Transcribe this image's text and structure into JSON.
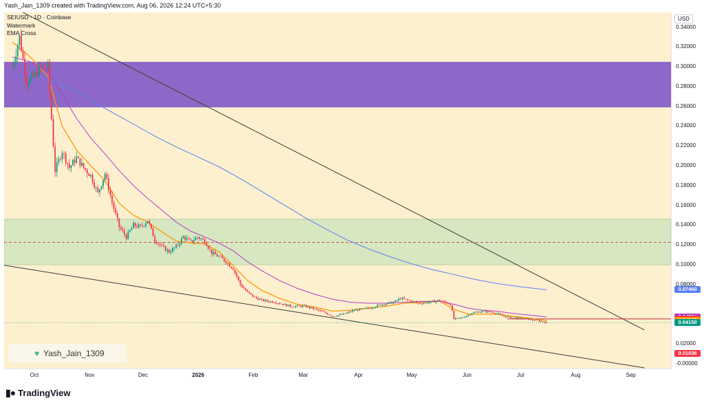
{
  "header": {
    "text": "Yash_Jain_1309 created with TradingView.com, Aug 06, 2026 12:24 UTC+5:30"
  },
  "legend": {
    "symbol_line": "SEIUSD · 1D · Coinbase",
    "watermark_label": "Watermark",
    "ema_label": "EMA Cross"
  },
  "watermark": {
    "text": "Yash_Jain_1309"
  },
  "footer": {
    "brand": "TradingView"
  },
  "price_axis": {
    "currency": "USD",
    "ticks": [
      "0.34000",
      "0.32000",
      "0.30000",
      "0.28000",
      "0.26000",
      "0.24000",
      "0.22000",
      "0.20000",
      "0.18000",
      "0.16000",
      "0.14000",
      "0.12000",
      "0.10000",
      "0.08000",
      "0.02000",
      "-0.00000"
    ],
    "tick_values": [
      0.34,
      0.32,
      0.3,
      0.28,
      0.26,
      0.24,
      0.22,
      0.2,
      0.18,
      0.16,
      0.14,
      0.12,
      0.1,
      0.08,
      0.02,
      0.0
    ],
    "badges": [
      {
        "label": "0.07460",
        "value": 0.0746,
        "color": "#5b7ff5"
      },
      {
        "label": "0.04724",
        "value": 0.04724,
        "color": "#b13ac6"
      },
      {
        "label": "0.04518",
        "value": 0.04518,
        "color": "#f23645"
      },
      {
        "label": "0.04343",
        "value": 0.04343,
        "color": "#ff9800"
      },
      {
        "label": "0.04150",
        "value": 0.0415,
        "color": "#089981"
      },
      {
        "label": "0.01036",
        "value": 0.01036,
        "color": "#f23645"
      }
    ]
  },
  "time_axis": {
    "labels": [
      {
        "label": "Oct",
        "day": 0,
        "bold": false
      },
      {
        "label": "Nov",
        "day": 31,
        "bold": false
      },
      {
        "label": "Dec",
        "day": 61,
        "bold": false
      },
      {
        "label": "2026",
        "day": 92,
        "bold": true
      },
      {
        "label": "Feb",
        "day": 123,
        "bold": false
      },
      {
        "label": "Mar",
        "day": 151,
        "bold": false
      },
      {
        "label": "Apr",
        "day": 182,
        "bold": false
      },
      {
        "label": "May",
        "day": 212,
        "bold": false
      },
      {
        "label": "Jun",
        "day": 243,
        "bold": false
      },
      {
        "label": "Jul",
        "day": 273,
        "bold": false
      },
      {
        "label": "Aug",
        "day": 304,
        "bold": false
      },
      {
        "label": "Sep",
        "day": 335,
        "bold": false
      }
    ]
  },
  "colors": {
    "background": "#fdf0cf",
    "up": "#089981",
    "down": "#f23645",
    "ema_short": "#ff9800",
    "ema_mid": "#b13ac6",
    "ema_long": "#5b7ff5",
    "purple_zone": "#8e68c8",
    "green_zone": "#d7e7c1"
  },
  "chart_data": {
    "type": "candlestick",
    "symbol": "SEIUSD",
    "interval": "1D",
    "exchange": "Coinbase",
    "currency": "USD",
    "ylim": [
      -0.005,
      0.355
    ],
    "zones": [
      {
        "name": "purple",
        "y_low": 0.259,
        "y_high": 0.305
      },
      {
        "name": "green",
        "y_low": 0.1,
        "y_high": 0.146
      }
    ],
    "hlines": [
      {
        "y": 0.1225,
        "style": "dashed",
        "color": "#c93a4a"
      },
      {
        "y": 0.04518,
        "style": "solid",
        "color": "#c93a4a",
        "from_day": 278
      },
      {
        "y": 0.0414,
        "style": "dotted",
        "color": "#089981"
      }
    ],
    "trendlines": [
      {
        "p1": [
          -5,
          0.365
        ],
        "p2": [
          355,
          0.034
        ]
      },
      {
        "p1": [
          -5,
          0.0995
        ],
        "p2": [
          355,
          -0.0043
        ]
      }
    ],
    "keypoints": [
      [
        0,
        0.3
      ],
      [
        4,
        0.33
      ],
      [
        8,
        0.285
      ],
      [
        12,
        0.29
      ],
      [
        16,
        0.3
      ],
      [
        20,
        0.3
      ],
      [
        24,
        0.195
      ],
      [
        28,
        0.215
      ],
      [
        32,
        0.198
      ],
      [
        36,
        0.208
      ],
      [
        40,
        0.198
      ],
      [
        44,
        0.19
      ],
      [
        48,
        0.172
      ],
      [
        52,
        0.192
      ],
      [
        56,
        0.163
      ],
      [
        60,
        0.138
      ],
      [
        64,
        0.128
      ],
      [
        68,
        0.14
      ],
      [
        72,
        0.138
      ],
      [
        76,
        0.145
      ],
      [
        80,
        0.125
      ],
      [
        84,
        0.118
      ],
      [
        88,
        0.113
      ],
      [
        92,
        0.118
      ],
      [
        96,
        0.128
      ],
      [
        100,
        0.123
      ],
      [
        104,
        0.128
      ],
      [
        108,
        0.124
      ],
      [
        112,
        0.112
      ],
      [
        116,
        0.108
      ],
      [
        120,
        0.103
      ],
      [
        124,
        0.096
      ],
      [
        128,
        0.08
      ],
      [
        132,
        0.072
      ],
      [
        136,
        0.067
      ],
      [
        140,
        0.064
      ],
      [
        148,
        0.062
      ],
      [
        156,
        0.058
      ],
      [
        164,
        0.058
      ],
      [
        170,
        0.055
      ],
      [
        176,
        0.051
      ],
      [
        180,
        0.048
      ],
      [
        186,
        0.05
      ],
      [
        192,
        0.054
      ],
      [
        200,
        0.056
      ],
      [
        208,
        0.06
      ],
      [
        214,
        0.062
      ],
      [
        218,
        0.066
      ],
      [
        222,
        0.064
      ],
      [
        228,
        0.061
      ],
      [
        234,
        0.062
      ],
      [
        240,
        0.064
      ],
      [
        246,
        0.06
      ],
      [
        248,
        0.045
      ],
      [
        252,
        0.046
      ],
      [
        258,
        0.051
      ],
      [
        264,
        0.053
      ],
      [
        270,
        0.052
      ],
      [
        274,
        0.049
      ],
      [
        278,
        0.047
      ],
      [
        284,
        0.046
      ],
      [
        290,
        0.045
      ],
      [
        296,
        0.043
      ],
      [
        300,
        0.0415
      ]
    ],
    "emas": [
      {
        "name": "EMA short",
        "color": "#ff9800",
        "points": [
          [
            0,
            0.325
          ],
          [
            10,
            0.31
          ],
          [
            20,
            0.29
          ],
          [
            28,
            0.24
          ],
          [
            36,
            0.216
          ],
          [
            44,
            0.2
          ],
          [
            52,
            0.185
          ],
          [
            60,
            0.162
          ],
          [
            68,
            0.15
          ],
          [
            76,
            0.143
          ],
          [
            84,
            0.133
          ],
          [
            92,
            0.124
          ],
          [
            100,
            0.122
          ],
          [
            108,
            0.121
          ],
          [
            116,
            0.113
          ],
          [
            124,
            0.099
          ],
          [
            132,
            0.084
          ],
          [
            140,
            0.074
          ],
          [
            150,
            0.066
          ],
          [
            160,
            0.06
          ],
          [
            170,
            0.057
          ],
          [
            180,
            0.053
          ],
          [
            190,
            0.054
          ],
          [
            200,
            0.056
          ],
          [
            210,
            0.058
          ],
          [
            220,
            0.061
          ],
          [
            230,
            0.062
          ],
          [
            240,
            0.063
          ],
          [
            248,
            0.055
          ],
          [
            256,
            0.05
          ],
          [
            264,
            0.05
          ],
          [
            272,
            0.05
          ],
          [
            280,
            0.048
          ],
          [
            290,
            0.046
          ],
          [
            300,
            0.0434
          ]
        ]
      },
      {
        "name": "EMA mid",
        "color": "#b13ac6",
        "points": [
          [
            0,
            0.31
          ],
          [
            10,
            0.305
          ],
          [
            20,
            0.296
          ],
          [
            28,
            0.272
          ],
          [
            36,
            0.248
          ],
          [
            44,
            0.228
          ],
          [
            52,
            0.212
          ],
          [
            60,
            0.195
          ],
          [
            68,
            0.18
          ],
          [
            76,
            0.167
          ],
          [
            84,
            0.155
          ],
          [
            92,
            0.143
          ],
          [
            100,
            0.134
          ],
          [
            108,
            0.128
          ],
          [
            116,
            0.122
          ],
          [
            124,
            0.114
          ],
          [
            132,
            0.103
          ],
          [
            140,
            0.094
          ],
          [
            150,
            0.084
          ],
          [
            160,
            0.076
          ],
          [
            170,
            0.07
          ],
          [
            180,
            0.065
          ],
          [
            190,
            0.062
          ],
          [
            200,
            0.061
          ],
          [
            210,
            0.061
          ],
          [
            220,
            0.062
          ],
          [
            230,
            0.063
          ],
          [
            240,
            0.063
          ],
          [
            248,
            0.06
          ],
          [
            256,
            0.056
          ],
          [
            264,
            0.054
          ],
          [
            272,
            0.053
          ],
          [
            280,
            0.051
          ],
          [
            290,
            0.049
          ],
          [
            300,
            0.0472
          ]
        ]
      },
      {
        "name": "EMA long",
        "color": "#5b7ff5",
        "points": [
          [
            0,
            0.29
          ],
          [
            10,
            0.292
          ],
          [
            20,
            0.288
          ],
          [
            30,
            0.28
          ],
          [
            40,
            0.271
          ],
          [
            50,
            0.26
          ],
          [
            60,
            0.25
          ],
          [
            70,
            0.24
          ],
          [
            80,
            0.23
          ],
          [
            92,
            0.219
          ],
          [
            104,
            0.209
          ],
          [
            116,
            0.199
          ],
          [
            128,
            0.187
          ],
          [
            140,
            0.174
          ],
          [
            152,
            0.161
          ],
          [
            164,
            0.148
          ],
          [
            176,
            0.136
          ],
          [
            188,
            0.125
          ],
          [
            200,
            0.116
          ],
          [
            212,
            0.108
          ],
          [
            224,
            0.101
          ],
          [
            236,
            0.095
          ],
          [
            248,
            0.09
          ],
          [
            260,
            0.085
          ],
          [
            272,
            0.081
          ],
          [
            284,
            0.078
          ],
          [
            300,
            0.0746
          ]
        ]
      }
    ]
  }
}
